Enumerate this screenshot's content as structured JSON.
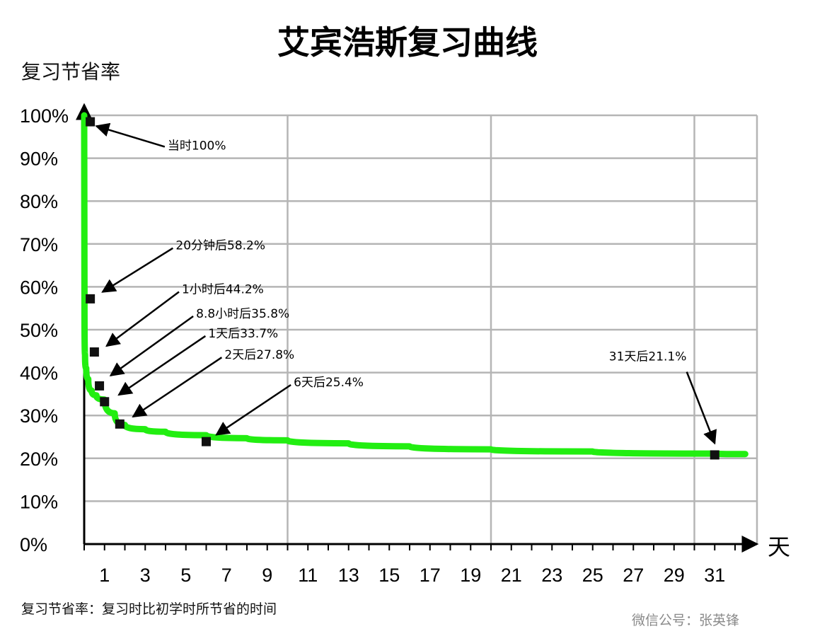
{
  "chart_data": {
    "type": "line",
    "title": "艾宾浩斯复习曲线",
    "ylabel": "复习节省率",
    "xlabel": "天",
    "xlim": [
      0,
      33
    ],
    "ylim": [
      0,
      100
    ],
    "grid": true,
    "y_ticks": [
      "0%",
      "10%",
      "20%",
      "30%",
      "40%",
      "50%",
      "60%",
      "70%",
      "80%",
      "90%",
      "100%"
    ],
    "x_ticks": [
      "1",
      "3",
      "5",
      "7",
      "9",
      "11",
      "13",
      "15",
      "17",
      "19",
      "21",
      "23",
      "25",
      "27",
      "29",
      "31"
    ],
    "series": [
      {
        "color": "#22ee11",
        "x": [
          0,
          0.0139,
          0.0417,
          0.1,
          0.2,
          0.3667,
          0.6,
          1,
          1.5,
          2,
          3,
          4,
          6,
          8,
          10,
          13,
          16,
          20,
          25,
          31,
          32.5
        ],
        "y": [
          100,
          58.2,
          44.2,
          41,
          38.5,
          35.8,
          34.7,
          33.7,
          30.5,
          27.8,
          26.8,
          26.2,
          25.4,
          24.7,
          24.2,
          23.5,
          22.8,
          22.1,
          21.6,
          21.1,
          21
        ]
      }
    ],
    "markers": [
      {
        "x": 0.3,
        "y": 98.5
      },
      {
        "x": 0.3,
        "y": 57.2
      },
      {
        "x": 0.5,
        "y": 44.8
      },
      {
        "x": 0.75,
        "y": 36.9
      },
      {
        "x": 1,
        "y": 33.2
      },
      {
        "x": 1.75,
        "y": 28.0
      },
      {
        "x": 6,
        "y": 23.9
      },
      {
        "x": 31,
        "y": 20.8
      }
    ],
    "annotations": [
      {
        "text": "当时100%",
        "text_x": 4.1,
        "text_y": 92,
        "arrow_to_x": 0.6,
        "arrow_to_y": 97.5
      },
      {
        "text": "20分钟后58.2%",
        "text_x": 4.5,
        "text_y": 68.7,
        "arrow_to_x": 0.9,
        "arrow_to_y": 58.8
      },
      {
        "text": "1小时后44.2%",
        "text_x": 4.8,
        "text_y": 58.5,
        "arrow_to_x": 1.1,
        "arrow_to_y": 46.2
      },
      {
        "text": "8.8小时后35.8%",
        "text_x": 5.5,
        "text_y": 52.8,
        "arrow_to_x": 1.3,
        "arrow_to_y": 39.3
      },
      {
        "text": "1天后33.7%",
        "text_x": 6.1,
        "text_y": 48.2,
        "arrow_to_x": 1.7,
        "arrow_to_y": 34.8
      },
      {
        "text": "2天后27.8%",
        "text_x": 6.9,
        "text_y": 43.2,
        "arrow_to_x": 2.4,
        "arrow_to_y": 29.7
      },
      {
        "text": "6天后25.4%",
        "text_x": 10.3,
        "text_y": 36.8,
        "arrow_to_x": 6.5,
        "arrow_to_y": 25.5
      },
      {
        "text": "31天后21.1%",
        "text_x": 25.8,
        "text_y": 42.8,
        "arrow_to_x": 31.0,
        "arrow_to_y": 23.5
      }
    ]
  },
  "footnote": "复习节省率：复习时比初学时所节省的时间",
  "watermark": "微信公号：张英锋"
}
